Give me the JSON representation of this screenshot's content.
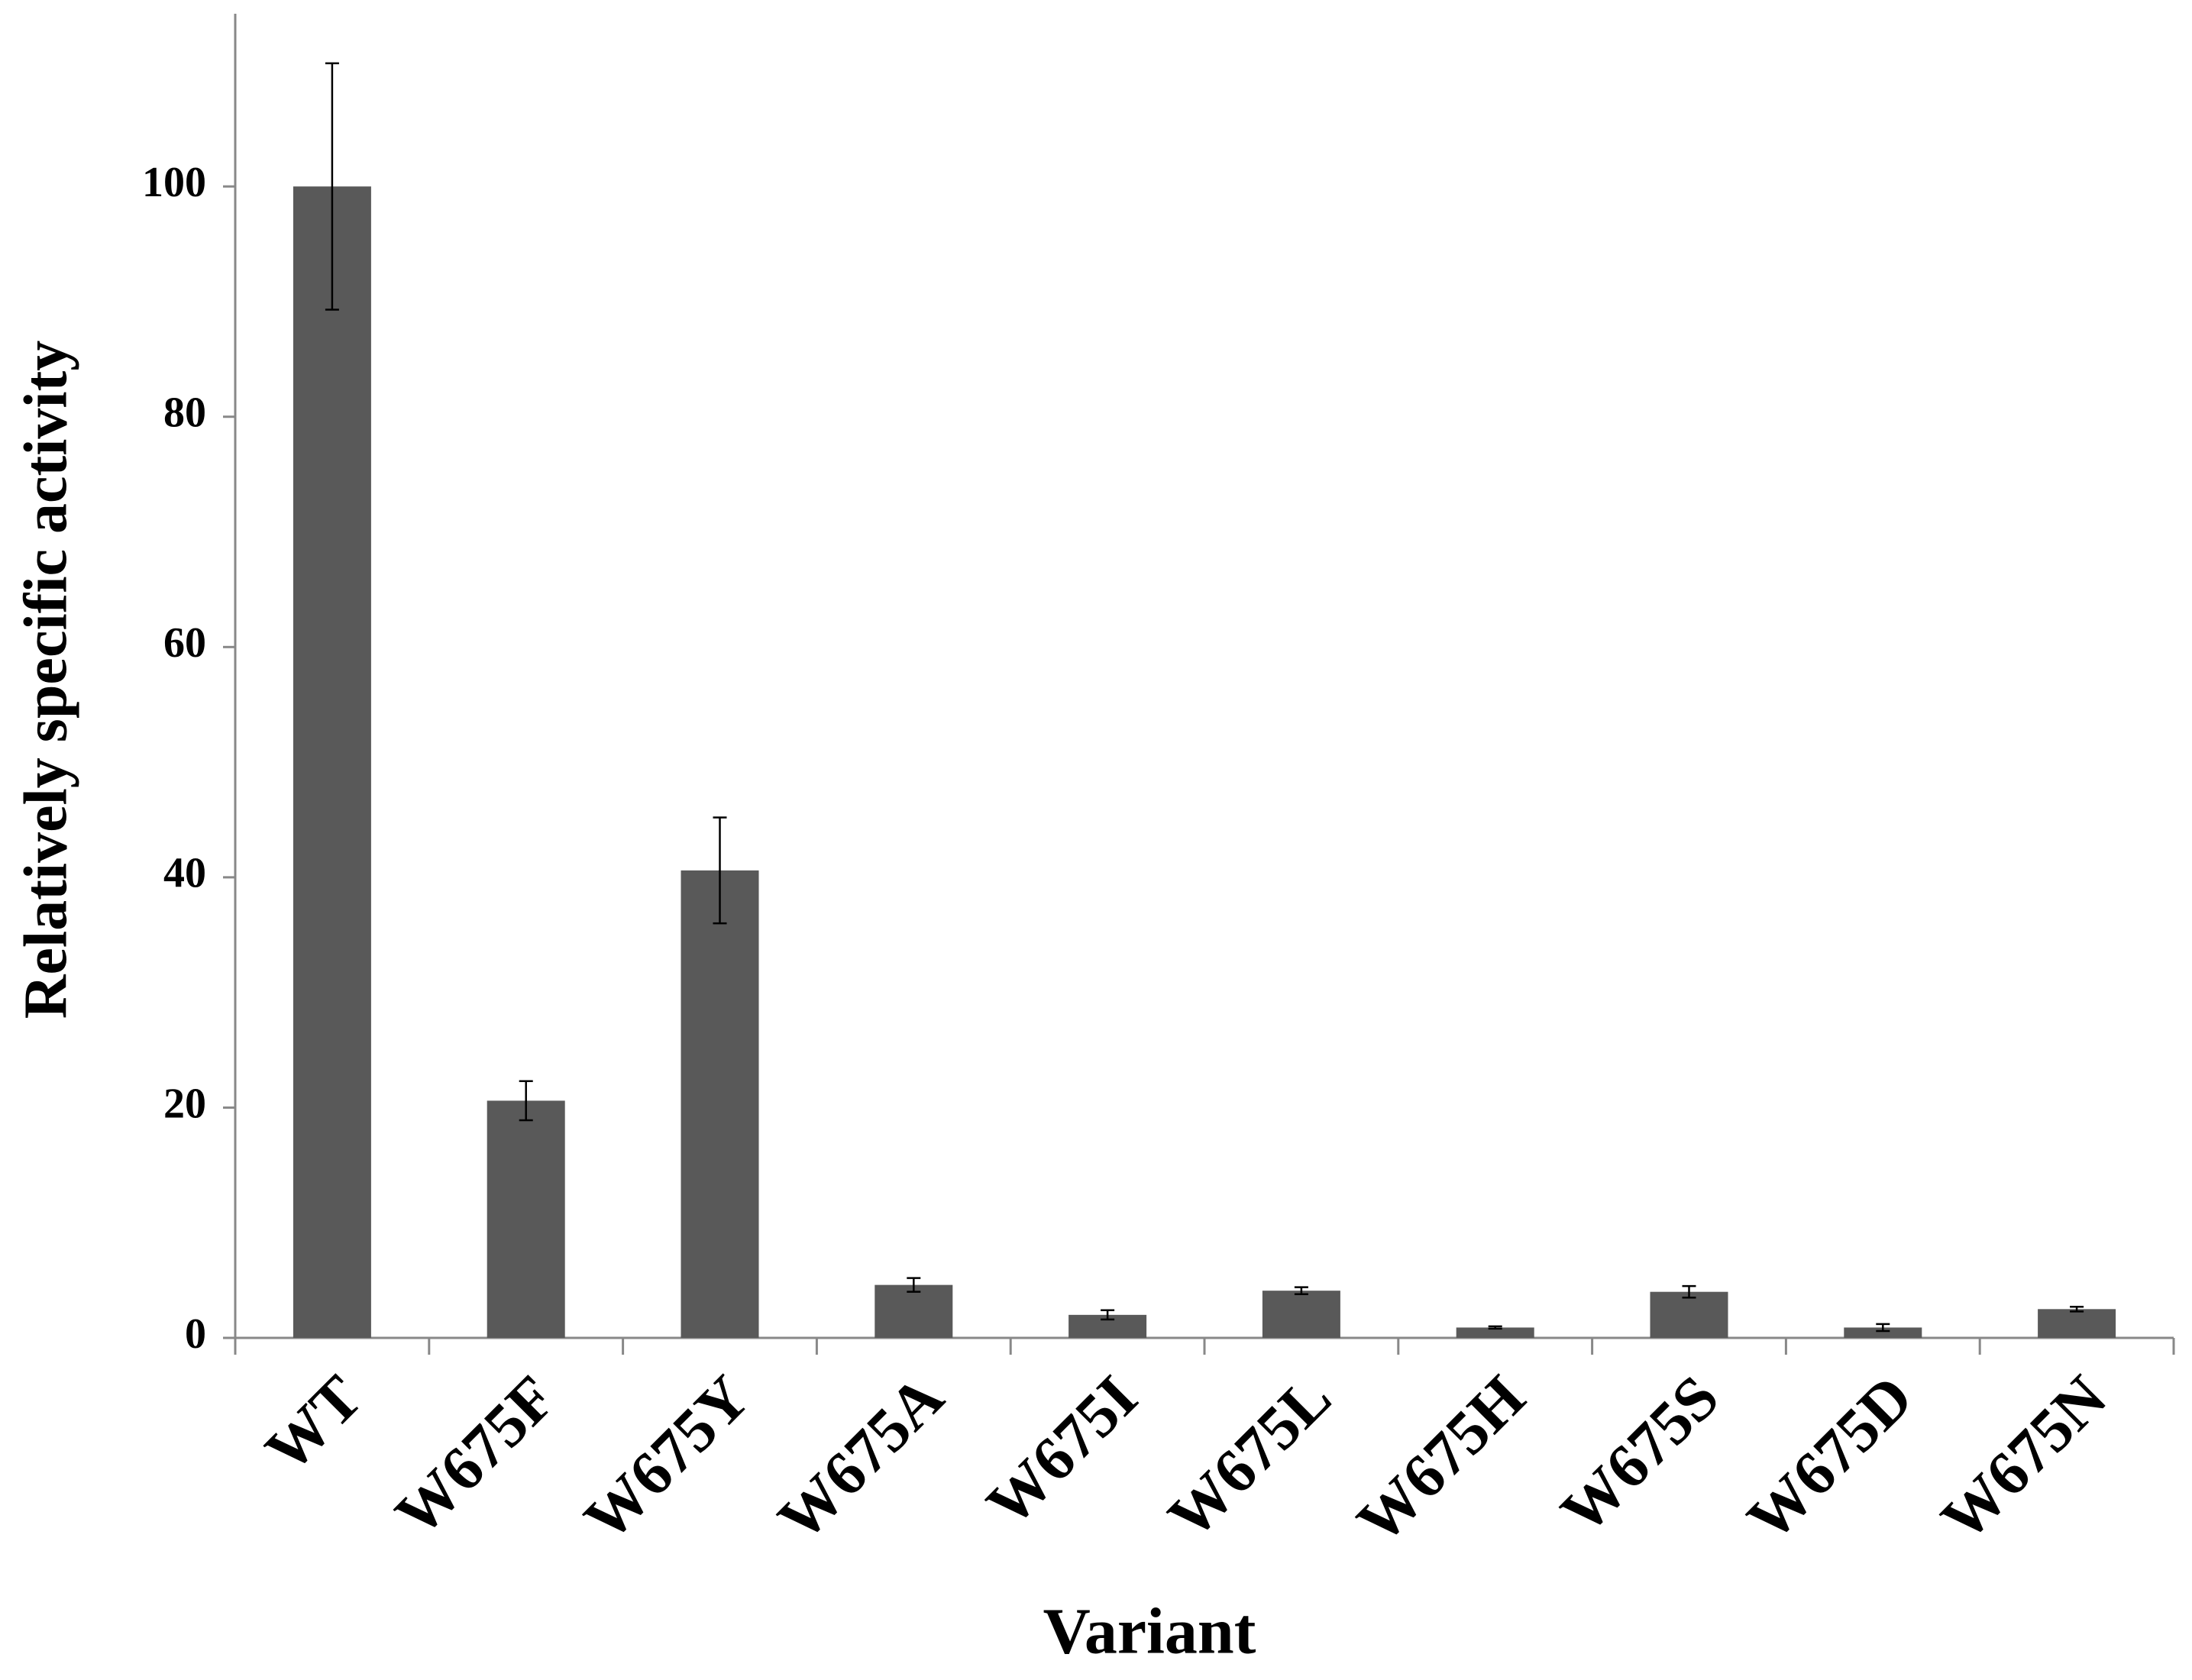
{
  "chart_data": {
    "type": "bar",
    "x_label": "Variant",
    "y_label": "Relatively specific activity",
    "categories": [
      "WT",
      "W675F",
      "W675Y",
      "W675A",
      "W675I",
      "W675L",
      "W675H",
      "W675S",
      "W675D",
      "W675N"
    ],
    "values": [
      100,
      20.6,
      40.6,
      4.6,
      2.0,
      4.1,
      0.9,
      4.0,
      0.9,
      2.5
    ],
    "errors": [
      10.7,
      1.7,
      4.6,
      0.6,
      0.4,
      0.3,
      0.1,
      0.5,
      0.3,
      0.2
    ],
    "color": "#595959",
    "ylim": [
      0,
      115
    ],
    "yticks": [
      0,
      20,
      40,
      60,
      80,
      100
    ],
    "grid": false
  }
}
